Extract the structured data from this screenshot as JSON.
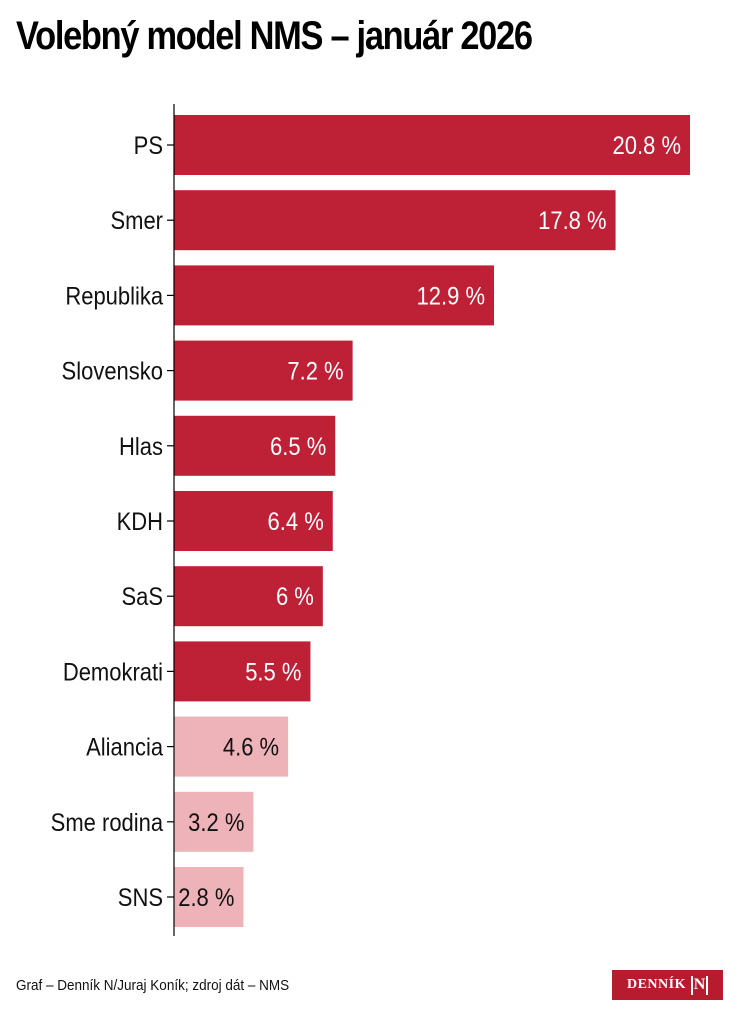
{
  "chart_data": {
    "type": "bar",
    "orientation": "horizontal",
    "title": "Volebný model NMS – január 2026",
    "xlabel": "",
    "ylabel": "",
    "xlim": [
      0,
      21
    ],
    "grid": false,
    "categories": [
      "PS",
      "Smer",
      "Republika",
      "Slovensko",
      "Hlas",
      "KDH",
      "SaS",
      "Demokrati",
      "Aliancia",
      "Sme rodina",
      "SNS"
    ],
    "values": [
      20.8,
      17.8,
      12.9,
      7.2,
      6.5,
      6.4,
      6,
      5.5,
      4.6,
      3.2,
      2.8
    ],
    "labels": [
      "20.8 %",
      "17.8 %",
      "12.9 %",
      "7.2 %",
      "6.5 %",
      "6.4 %",
      "6 %",
      "5.5 %",
      "4.6 %",
      "3.2 %",
      "2.8 %"
    ],
    "colors": {
      "above_threshold": "#be2035",
      "below_threshold": "#edb3b8",
      "label_on_dark": "#ffffff",
      "label_on_light": "#111111"
    },
    "threshold": 5
  },
  "footer": {
    "credit": "Graf – Denník N/Juraj Koník; zdroj dát – NMS"
  },
  "logo": {
    "text": "DENNÍK",
    "mark": "N"
  }
}
